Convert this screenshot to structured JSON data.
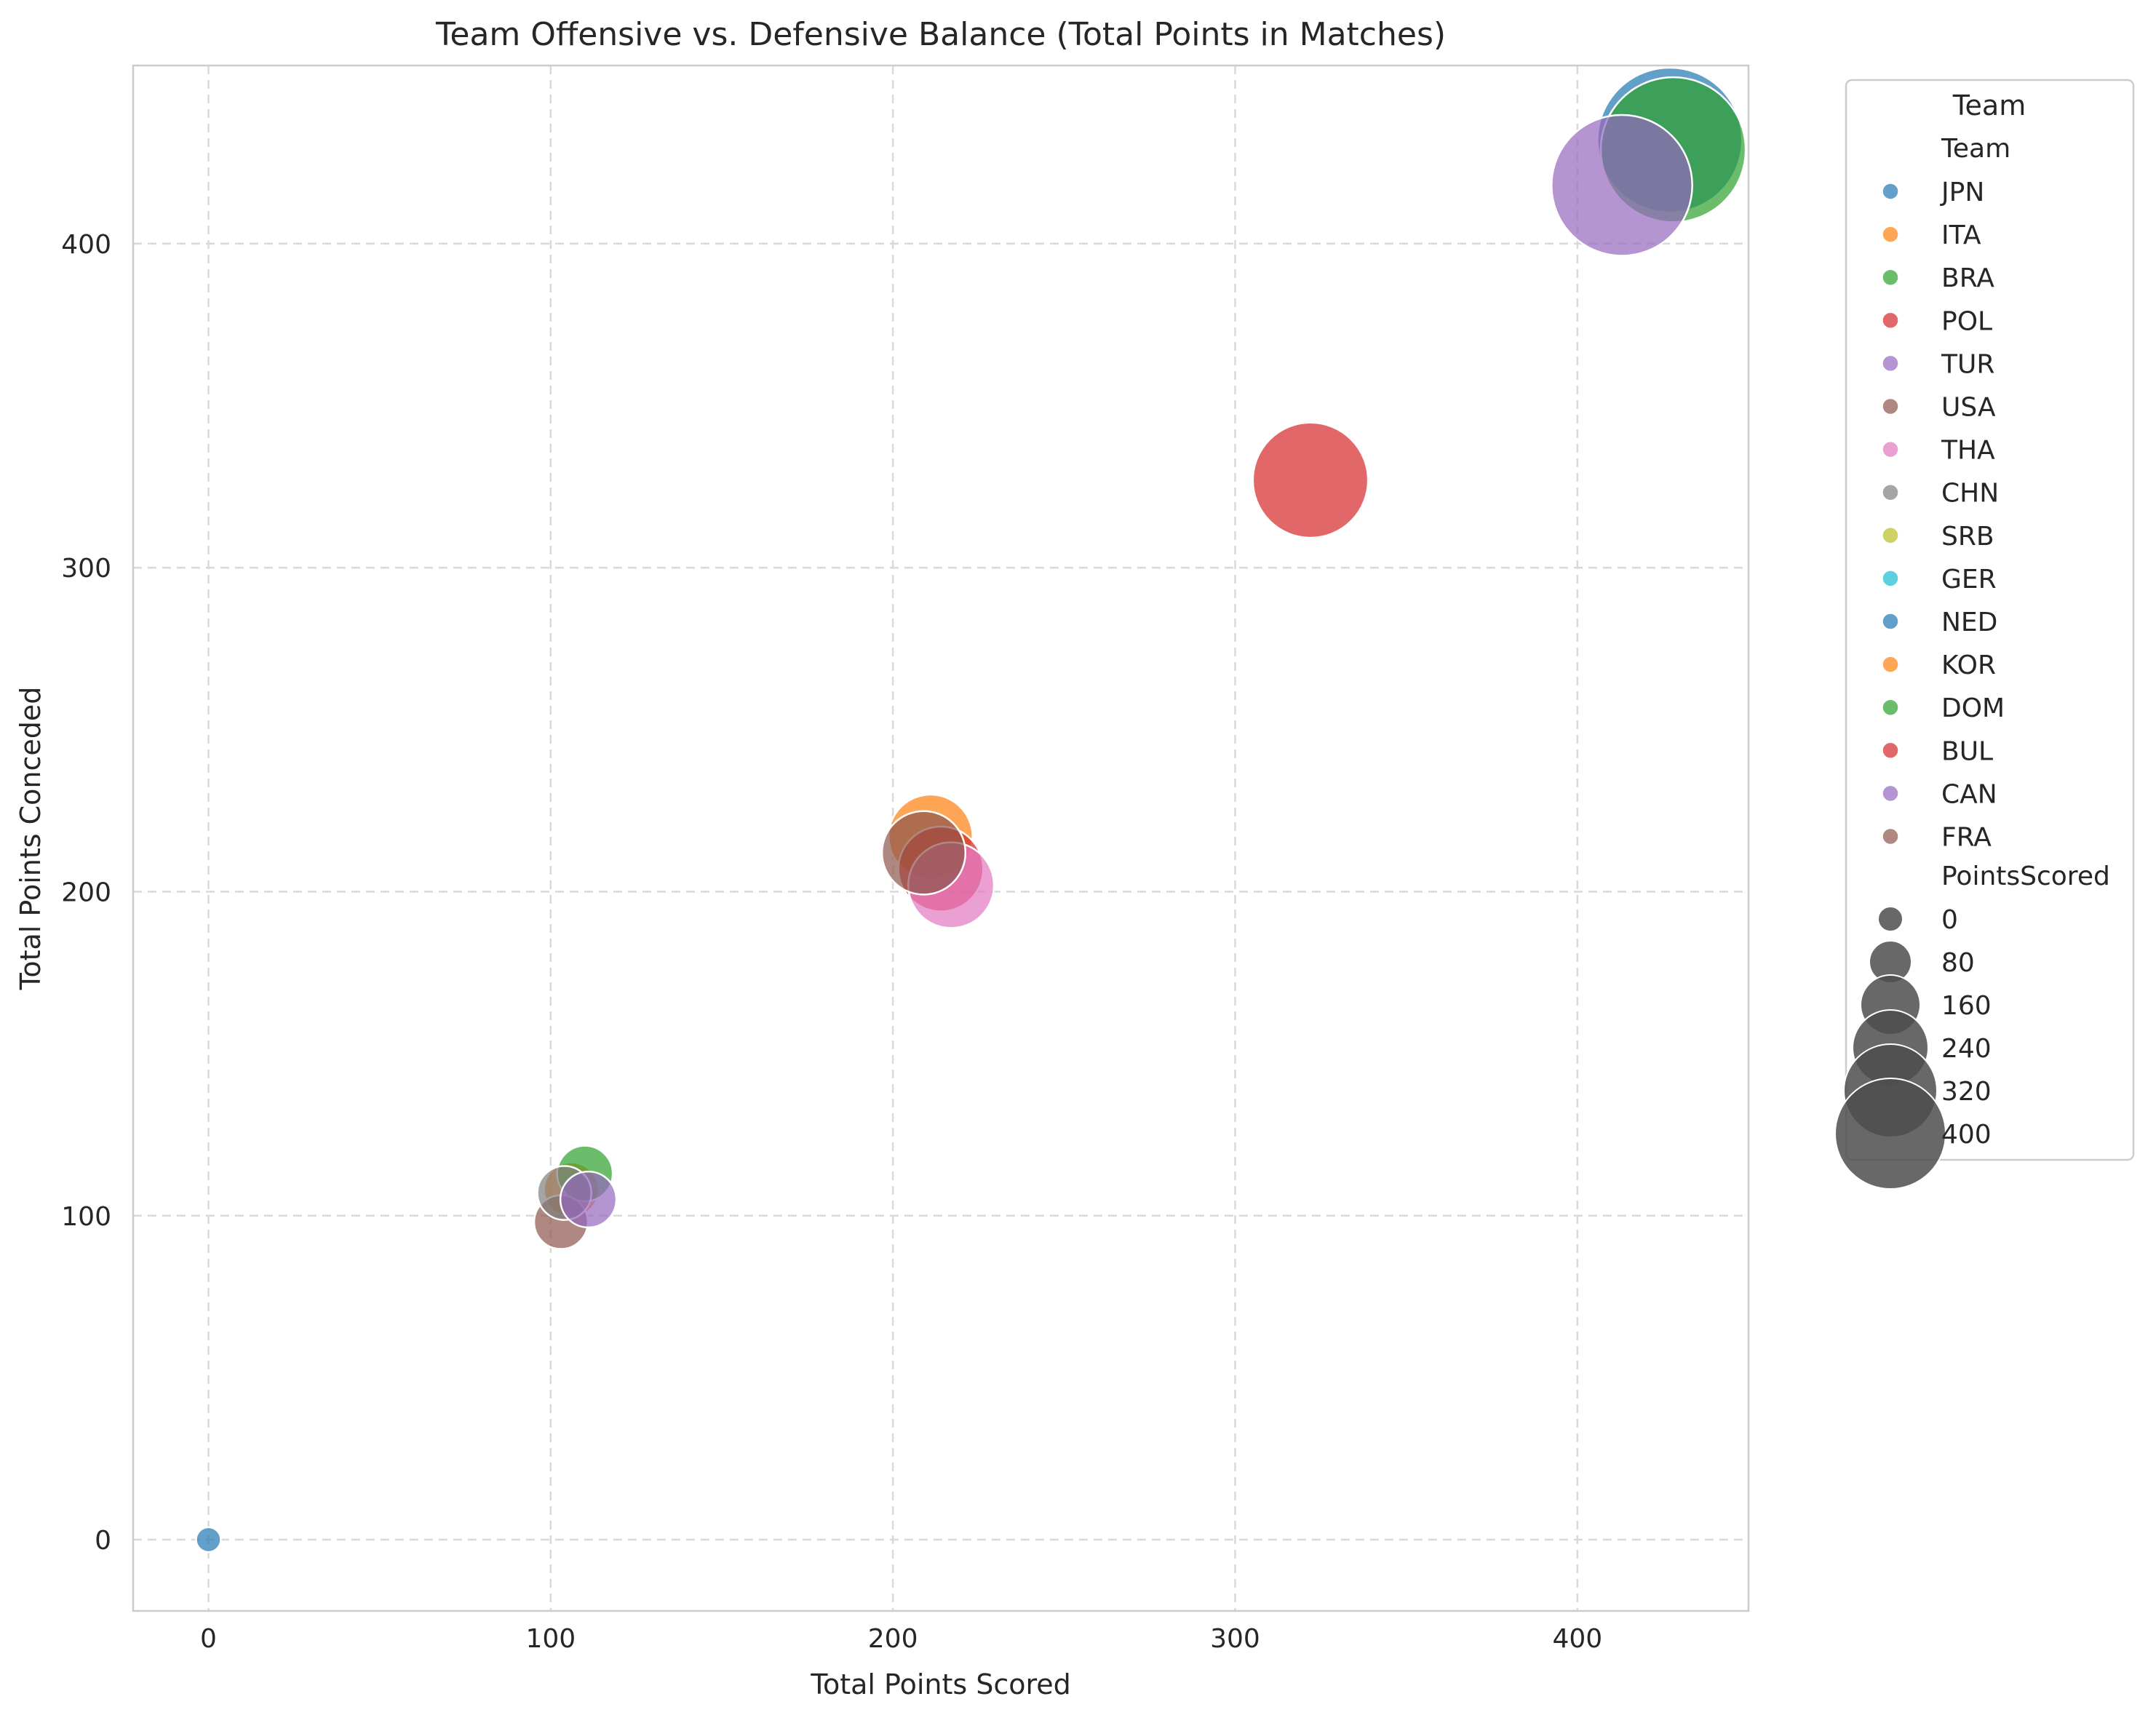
{
  "chart_data": {
    "type": "scatter",
    "title": "Team Offensive vs. Defensive Balance (Total Points in Matches)",
    "xlabel": "Total Points Scored",
    "ylabel": "Total Points Conceded",
    "xlim": [
      -22,
      450
    ],
    "ylim": [
      -22,
      455
    ],
    "xticks": [
      0,
      100,
      200,
      300,
      400
    ],
    "yticks": [
      0,
      100,
      200,
      300,
      400
    ],
    "grid": true,
    "legend_position": "outside-right",
    "legend": {
      "title": "Team",
      "hue_heading": "Team",
      "size_heading": "PointsScored",
      "size_levels": [
        0,
        80,
        160,
        240,
        320,
        400
      ]
    },
    "size_range": [
      0,
      430
    ],
    "points": [
      {
        "team": "NED",
        "x": 0,
        "y": 0,
        "color": "#1f77b4"
      },
      {
        "team": "JPN",
        "x": 427,
        "y": 432,
        "color": "#1f77b4"
      },
      {
        "team": "BRA",
        "x": 428,
        "y": 429,
        "color": "#2ca02c"
      },
      {
        "team": "TUR",
        "x": 413,
        "y": 418,
        "color": "#9467bd"
      },
      {
        "team": "POL",
        "x": 322,
        "y": 327,
        "color": "#d62728"
      },
      {
        "team": "ITA",
        "x": 211,
        "y": 217,
        "color": "#ff7f0e"
      },
      {
        "team": "BUL",
        "x": 214,
        "y": 207,
        "color": "#d62728"
      },
      {
        "team": "THA",
        "x": 217,
        "y": 202,
        "color": "#e377c2"
      },
      {
        "team": "FRA",
        "x": 209,
        "y": 212,
        "color": "#8c564b"
      },
      {
        "team": "KOR",
        "x": 106,
        "y": 108,
        "color": "#ff7f0e"
      },
      {
        "team": "DOM",
        "x": 110,
        "y": 113,
        "color": "#2ca02c"
      },
      {
        "team": "USA",
        "x": 103,
        "y": 98,
        "color": "#8c564b"
      },
      {
        "team": "CHN",
        "x": 104,
        "y": 107,
        "color": "#7f7f7f"
      },
      {
        "team": "CAN",
        "x": 111,
        "y": 105,
        "color": "#9467bd"
      }
    ],
    "series": [
      {
        "name": "JPN",
        "color": "#1f77b4"
      },
      {
        "name": "ITA",
        "color": "#ff7f0e"
      },
      {
        "name": "BRA",
        "color": "#2ca02c"
      },
      {
        "name": "POL",
        "color": "#d62728"
      },
      {
        "name": "TUR",
        "color": "#9467bd"
      },
      {
        "name": "USA",
        "color": "#8c564b"
      },
      {
        "name": "THA",
        "color": "#e377c2"
      },
      {
        "name": "CHN",
        "color": "#7f7f7f"
      },
      {
        "name": "SRB",
        "color": "#bcbd22"
      },
      {
        "name": "GER",
        "color": "#17becf"
      },
      {
        "name": "NED",
        "color": "#1f77b4"
      },
      {
        "name": "KOR",
        "color": "#ff7f0e"
      },
      {
        "name": "DOM",
        "color": "#2ca02c"
      },
      {
        "name": "BUL",
        "color": "#d62728"
      },
      {
        "name": "CAN",
        "color": "#9467bd"
      },
      {
        "name": "FRA",
        "color": "#8c564b"
      }
    ]
  }
}
